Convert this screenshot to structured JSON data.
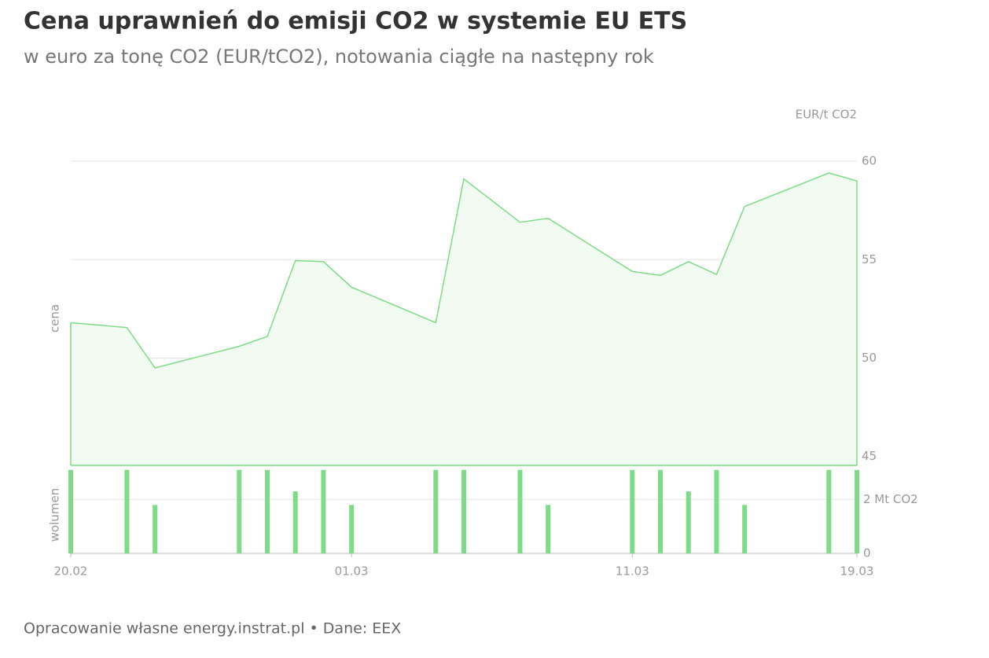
{
  "chart_data": [
    {
      "type": "area",
      "title": "Cena uprawnień do emisji CO2 w systemie EU ETS",
      "subtitle": "w euro za tonę CO2 (EUR/tCO2), notowania ciągłe na następny rok",
      "unit_label": "EUR/t CO2",
      "y_label": "cena",
      "color": "#7ddc85",
      "fill": "#f1fbf1",
      "x": [
        0,
        2,
        3,
        6,
        7,
        8,
        9,
        10,
        13,
        14,
        16,
        17,
        20,
        21,
        22,
        23,
        24,
        27,
        28
      ],
      "values": [
        51.8,
        51.55,
        49.5,
        50.6,
        51.1,
        54.95,
        54.9,
        53.6,
        51.8,
        59.1,
        56.9,
        57.1,
        54.4,
        54.2,
        54.9,
        54.25,
        57.7,
        59.4,
        59.0
      ],
      "xlim": [
        0,
        28
      ],
      "ylim": [
        44.55,
        61
      ],
      "yticks": [
        45,
        50,
        55,
        60
      ],
      "grid": true
    },
    {
      "type": "bar",
      "y_label": "wolumen",
      "color": "#7ddc85",
      "x": [
        0,
        2,
        3,
        6,
        7,
        8,
        9,
        10,
        13,
        14,
        16,
        17,
        20,
        21,
        22,
        23,
        24,
        27,
        28
      ],
      "values": [
        3.1,
        3.1,
        1.8,
        3.1,
        3.1,
        2.3,
        3.1,
        1.8,
        3.1,
        3.1,
        3.1,
        1.8,
        3.1,
        3.1,
        2.3,
        3.1,
        1.8,
        3.1,
        3.1
      ],
      "xlim": [
        0,
        28
      ],
      "ylim": [
        0,
        3.15
      ],
      "yticks": [
        0,
        {
          "value": 2,
          "label": "2 Mt CO2"
        }
      ],
      "xticks": [
        {
          "value": 0,
          "label": "20.02"
        },
        {
          "value": 10,
          "label": "01.03"
        },
        {
          "value": 20,
          "label": "11.03"
        },
        {
          "value": 28,
          "label": "19.03"
        }
      ]
    }
  ],
  "source": "Opracowanie własne energy.instrat.pl • Dane: EEX"
}
